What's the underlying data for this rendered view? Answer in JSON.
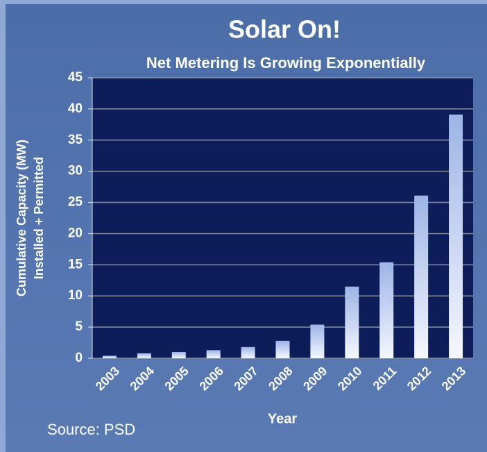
{
  "chart_data": {
    "type": "bar",
    "title": "Solar On!",
    "subtitle": "Net Metering Is Growing Exponentially",
    "ylabel": [
      "Cumulative Capacity (MW)",
      "Installed + Permitted"
    ],
    "xlabel": "Year",
    "annotation": "Source: PSD",
    "categories": [
      "2003",
      "2004",
      "2005",
      "2006",
      "2007",
      "2008",
      "2009",
      "2010",
      "2011",
      "2012",
      "2013"
    ],
    "values": [
      0.4,
      0.8,
      1.0,
      1.3,
      1.8,
      2.8,
      5.4,
      11.5,
      15.4,
      26.1,
      39.1
    ],
    "color": "#9db4e6",
    "ylim": [
      0,
      45
    ],
    "yticks": [
      0,
      5,
      10,
      15,
      20,
      25,
      30,
      35,
      40,
      45
    ],
    "grid": true
  }
}
